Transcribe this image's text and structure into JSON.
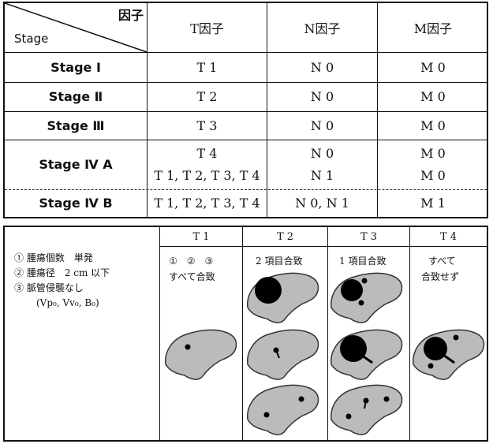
{
  "staging_table": {
    "header": {
      "factor": "因子",
      "stage": "Stage",
      "t": "T因子",
      "n": "N因子",
      "m": "M因子"
    },
    "rows": [
      {
        "stage": "Stage Ⅰ",
        "t": "T 1",
        "n": "N 0",
        "m": "M 0"
      },
      {
        "stage": "Stage Ⅱ",
        "t": "T 2",
        "n": "N 0",
        "m": "M 0"
      },
      {
        "stage": "Stage Ⅲ",
        "t": "T 3",
        "n": "N 0",
        "m": "M 0"
      },
      {
        "stage": "Stage Ⅳ A",
        "t1": "T 4",
        "n1": "N 0",
        "m1": "M 0",
        "t2": "T 1, T 2, T 3, T 4",
        "n2": "N 1",
        "m2": "M 0"
      },
      {
        "stage": "Stage Ⅳ B",
        "t": "T 1, T 2, T 3, T 4",
        "n": "N 0, N 1",
        "m": "M 1"
      }
    ]
  },
  "t_table": {
    "headers": [
      "T 1",
      "T 2",
      "T 3",
      "T 4"
    ],
    "criteria": [
      "① 腫瘍個数　単発",
      "② 腫瘍径　2 cm 以下",
      "③ 脈管侵襲なし",
      "(Vp₀, Vv₀, B₀)"
    ],
    "t1_marks": "①　②　③",
    "t1_text": "すべて合致",
    "t2_text": "2 項目合致",
    "t3_text": "1 項目合致",
    "t4_text1": "すべて",
    "t4_text2": "合致せず"
  }
}
